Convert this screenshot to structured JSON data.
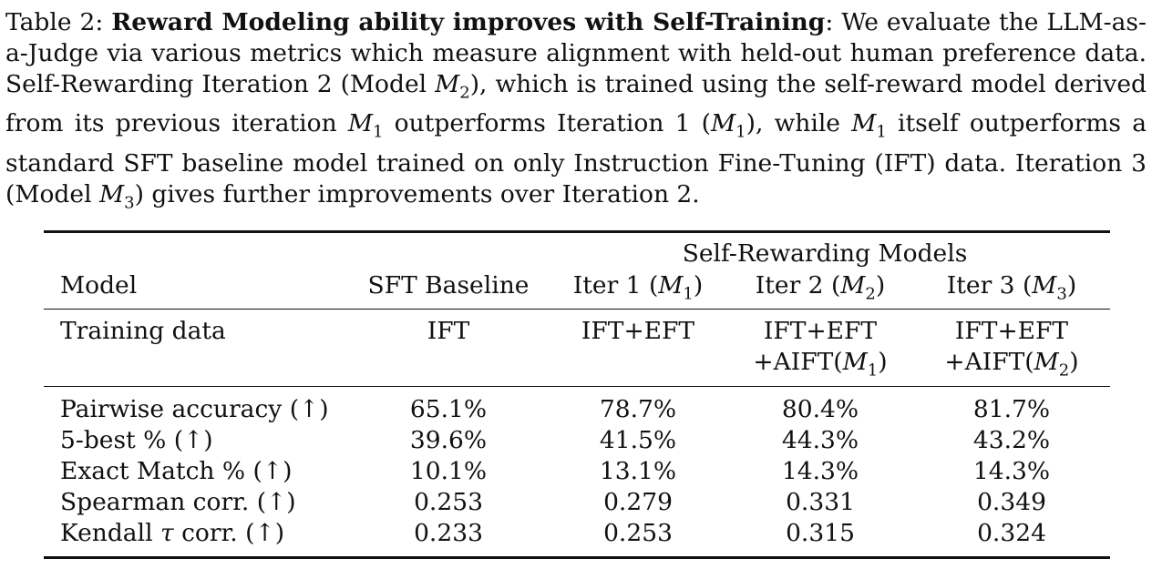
{
  "caption": {
    "lead": "Table 2: ",
    "bold": "Reward Modeling ability improves with Self-Training",
    "text1": ": We evaluate the LLM-as-a-Judge via various metrics which measure alignment with held-out human preference data. Self-Rewarding Iteration 2 (Model ",
    "m2a": "M",
    "m2a_sub": "2",
    "text2": "), which is trained using the self-reward model derived from its previous iteration ",
    "m1a": "M",
    "m1a_sub": "1",
    "text3": " outperforms Iteration 1 (",
    "m1b": "M",
    "m1b_sub": "1",
    "text4": "), while ",
    "m1c": "M",
    "m1c_sub": "1",
    "text5": " itself outperforms a standard SFT baseline model trained on only Instruction Fine-Tuning (IFT) data. Iteration 3 (Model ",
    "m3": "M",
    "m3_sub": "3",
    "text6": ") gives further improvements over Iteration 2."
  },
  "table": {
    "group_header": "Self-Rewarding Models",
    "columns": {
      "model": "Model",
      "sft": "SFT Baseline",
      "iter1_pre": "Iter 1 (",
      "iter1_m": "M",
      "iter1_sub": "1",
      "iter1_post": ")",
      "iter2_pre": "Iter 2 (",
      "iter2_m": "M",
      "iter2_sub": "2",
      "iter2_post": ")",
      "iter3_pre": "Iter 3 (",
      "iter3_m": "M",
      "iter3_sub": "3",
      "iter3_post": ")"
    },
    "training": {
      "label": "Training data",
      "sft": "IFT",
      "iter1": "IFT+EFT",
      "iter2_l1": "IFT+EFT",
      "iter2_l2_pre": "+AIFT(",
      "iter2_m": "M",
      "iter2_sub": "1",
      "iter2_post": ")",
      "iter3_l1": "IFT+EFT",
      "iter3_l2_pre": "+AIFT(",
      "iter3_m": "M",
      "iter3_sub": "2",
      "iter3_post": ")"
    },
    "rows": [
      {
        "label": "Pairwise accuracy (↑)",
        "sft": "65.1%",
        "iter1": "78.7%",
        "iter2": "80.4%",
        "iter3": "81.7%"
      },
      {
        "label": "5-best % (↑)",
        "sft": "39.6%",
        "iter1": "41.5%",
        "iter2": "44.3%",
        "iter3": "43.2%"
      },
      {
        "label": "Exact Match % (↑)",
        "sft": "10.1%",
        "iter1": "13.1%",
        "iter2": "14.3%",
        "iter3": "14.3%"
      },
      {
        "label": "Spearman corr. (↑)",
        "sft": "0.253",
        "iter1": "0.279",
        "iter2": "0.331",
        "iter3": "0.349"
      },
      {
        "label_pre": "Kendall ",
        "label_tau": "τ",
        "label_post": " corr. (↑)",
        "sft": "0.233",
        "iter1": "0.253",
        "iter2": "0.315",
        "iter3": "0.324"
      }
    ]
  }
}
